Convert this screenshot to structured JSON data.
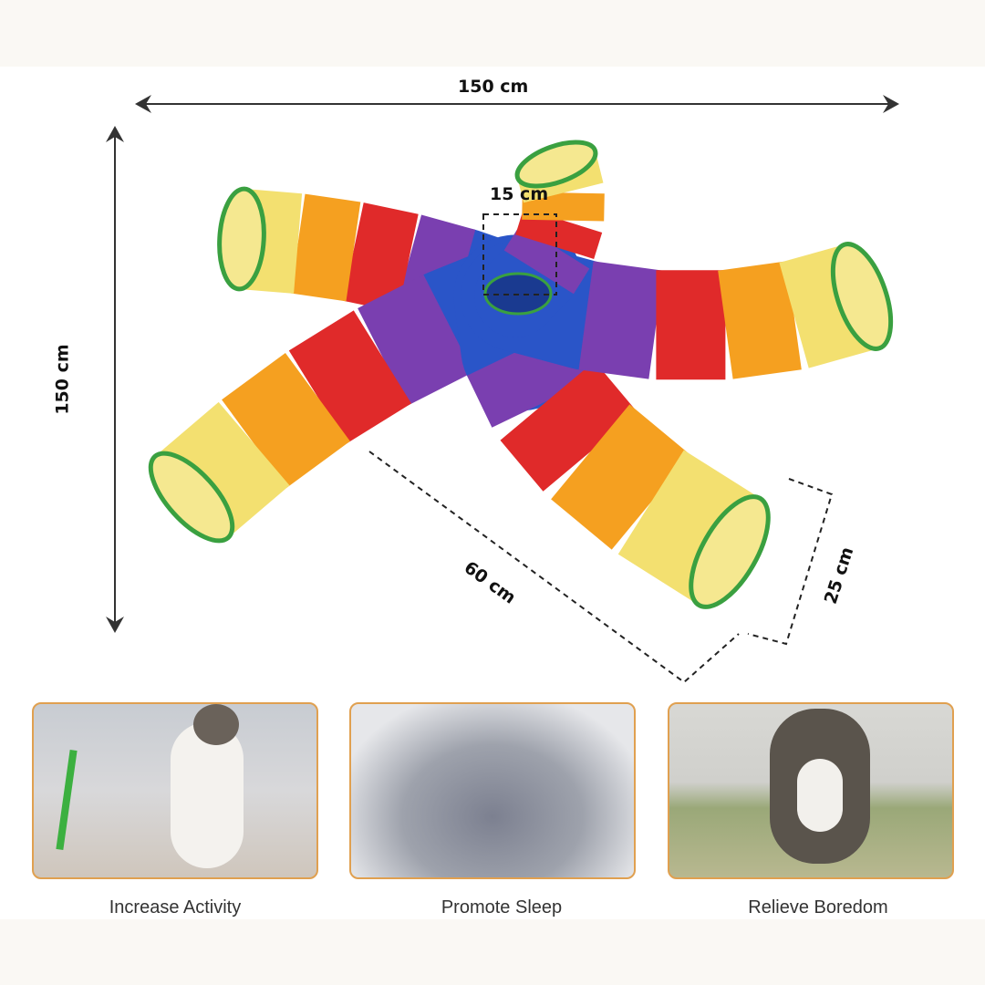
{
  "dimensions": {
    "width": "150 cm",
    "height": "150 cm",
    "hole": "15 cm",
    "arm_length": "60 cm",
    "diameter": "25 cm"
  },
  "tunnel_colors": [
    "#2a55c8",
    "#7a3fb0",
    "#e02a2a",
    "#f5a020",
    "#f3e070"
  ],
  "ring_color": "#3aa040",
  "frame_color": "#e0a050",
  "features": [
    {
      "label": "Increase Activity"
    },
    {
      "label": "Promote Sleep"
    },
    {
      "label": "Relieve Boredom"
    }
  ]
}
